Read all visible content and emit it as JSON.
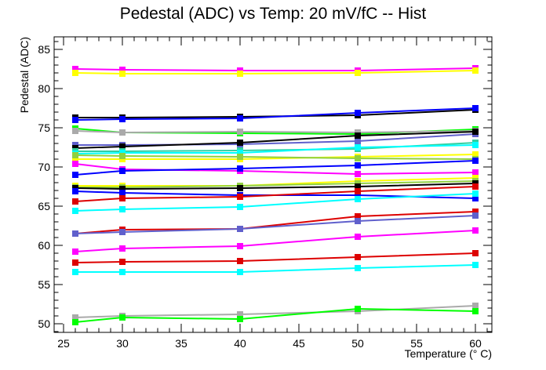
{
  "chart_data": {
    "type": "line",
    "title": "Pedestal (ADC) vs Temp: 20 mV/fC -- Hist",
    "xlabel": "Temperature (° C)",
    "ylabel": "Pedestal (ADC)",
    "x": [
      26,
      30,
      40,
      50,
      60
    ],
    "xlim": [
      24.2,
      61.4
    ],
    "ylim": [
      48.9,
      86.6
    ],
    "xticks": [
      25,
      30,
      35,
      40,
      45,
      50,
      55,
      60
    ],
    "yticks": [
      50,
      55,
      60,
      65,
      70,
      75,
      80,
      85
    ],
    "grid": false,
    "series": [
      {
        "color": "#ff00ff",
        "values": [
          82.5,
          82.4,
          82.3,
          82.3,
          82.6
        ]
      },
      {
        "color": "#ffff00",
        "values": [
          82.0,
          81.9,
          81.9,
          82.0,
          82.3
        ]
      },
      {
        "color": "#000000",
        "values": [
          76.3,
          76.3,
          76.4,
          76.6,
          77.3
        ]
      },
      {
        "color": "#0000ff",
        "values": [
          76.0,
          76.1,
          76.2,
          76.9,
          77.5
        ]
      },
      {
        "color": "#00ff00",
        "values": [
          74.9,
          74.4,
          74.3,
          74.2,
          74.8
        ]
      },
      {
        "color": "#aaaaaa",
        "values": [
          74.6,
          74.4,
          74.5,
          74.4,
          74.6
        ]
      },
      {
        "color": "#6060cc",
        "values": [
          72.8,
          72.8,
          72.9,
          73.3,
          74.2
        ]
      },
      {
        "color": "#000000",
        "values": [
          72.4,
          72.6,
          73.1,
          74.0,
          74.5
        ]
      },
      {
        "color": "#30cfa0",
        "values": [
          72.0,
          72.0,
          72.1,
          72.3,
          73.1
        ]
      },
      {
        "color": "#00ffff",
        "values": [
          71.7,
          71.8,
          71.8,
          72.5,
          72.8
        ]
      },
      {
        "color": "#ffff00",
        "values": [
          71.0,
          71.0,
          71.0,
          71.3,
          71.6
        ]
      },
      {
        "color": "#90d040",
        "values": [
          71.5,
          71.4,
          71.3,
          71.1,
          71.0
        ]
      },
      {
        "color": "#ff00ff",
        "values": [
          70.4,
          69.7,
          69.5,
          69.1,
          69.3
        ]
      },
      {
        "color": "#0000ff",
        "values": [
          69.0,
          69.5,
          69.8,
          70.2,
          70.8
        ]
      },
      {
        "color": "#ffff00",
        "values": [
          67.6,
          67.6,
          67.6,
          68.2,
          68.6
        ]
      },
      {
        "color": "#90d040",
        "values": [
          67.4,
          67.4,
          67.6,
          67.9,
          68.2
        ]
      },
      {
        "color": "#000000",
        "values": [
          67.3,
          67.2,
          67.3,
          67.5,
          67.9
        ]
      },
      {
        "color": "#0000ff",
        "values": [
          66.9,
          66.7,
          66.4,
          66.4,
          66.0
        ]
      },
      {
        "color": "#dd0000",
        "values": [
          65.6,
          66.0,
          66.2,
          66.9,
          67.5
        ]
      },
      {
        "color": "#00ffff",
        "values": [
          64.4,
          64.6,
          64.9,
          65.9,
          66.6
        ]
      },
      {
        "color": "#dd0000",
        "values": [
          61.5,
          62.0,
          62.1,
          63.7,
          64.3
        ]
      },
      {
        "color": "#6060cc",
        "values": [
          61.5,
          61.7,
          62.1,
          63.1,
          63.8
        ]
      },
      {
        "color": "#ff00ff",
        "values": [
          59.2,
          59.6,
          59.9,
          61.1,
          61.9
        ]
      },
      {
        "color": "#dd0000",
        "values": [
          57.8,
          57.9,
          58.0,
          58.5,
          59.0
        ]
      },
      {
        "color": "#00ffff",
        "values": [
          56.6,
          56.6,
          56.6,
          57.1,
          57.5
        ]
      },
      {
        "color": "#aaaaaa",
        "values": [
          50.8,
          51.0,
          51.2,
          51.6,
          52.3
        ]
      },
      {
        "color": "#00ff00",
        "values": [
          50.2,
          50.8,
          50.6,
          51.9,
          51.6
        ]
      }
    ]
  }
}
